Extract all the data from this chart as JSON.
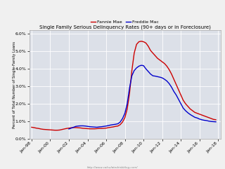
{
  "title": "Single Family Serious Delinquency Rates (90+ days or in Foreclosure)",
  "ylabel": "Percent of Total Number of Single-Family Loans",
  "url_text": "http://www.calculatedriskblog.com/",
  "legend_fannie": "Fannie Mae",
  "legend_freddie": "Freddie Mac",
  "fannie_color": "#cc0000",
  "freddie_color": "#0000cc",
  "background_color": "#dce0e8",
  "plot_bg_color": "#dce0e8",
  "fig_bg_color": "#f0f0f0",
  "grid_color": "#ffffff",
  "ylim": [
    0.0,
    0.062
  ],
  "yticks": [
    0.0,
    0.01,
    0.02,
    0.03,
    0.04,
    0.05,
    0.06
  ],
  "ytick_labels": [
    "0.0%",
    "1.0%",
    "2.0%",
    "3.0%",
    "4.0%",
    "5.0%",
    "6.0%"
  ],
  "xtick_labels": [
    "Jan-98",
    "Jan-00",
    "Jan-02",
    "Jan-04",
    "Jan-06",
    "Jan-08",
    "Jan-10",
    "Jan-12",
    "Jan-14",
    "Jan-16",
    "Jan-18"
  ],
  "xtick_positions": [
    1998,
    2000,
    2002,
    2004,
    2006,
    2008,
    2010,
    2012,
    2014,
    2016,
    2018
  ],
  "xlim": [
    1997.75,
    2018.25
  ],
  "fannie_x": [
    1998.0,
    1998.25,
    1998.5,
    1998.75,
    1999.0,
    1999.25,
    1999.5,
    1999.75,
    2000.0,
    2000.25,
    2000.5,
    2000.75,
    2001.0,
    2001.25,
    2001.5,
    2001.75,
    2002.0,
    2002.25,
    2002.5,
    2002.75,
    2003.0,
    2003.25,
    2003.5,
    2003.75,
    2004.0,
    2004.25,
    2004.5,
    2004.75,
    2005.0,
    2005.25,
    2005.5,
    2005.75,
    2006.0,
    2006.25,
    2006.5,
    2006.75,
    2007.0,
    2007.25,
    2007.5,
    2007.75,
    2008.0,
    2008.25,
    2008.5,
    2008.75,
    2009.0,
    2009.25,
    2009.5,
    2009.75,
    2010.0,
    2010.25,
    2010.5,
    2010.75,
    2011.0,
    2011.25,
    2011.5,
    2011.75,
    2012.0,
    2012.25,
    2012.5,
    2012.75,
    2013.0,
    2013.25,
    2013.5,
    2013.75,
    2014.0,
    2014.25,
    2014.5,
    2014.75,
    2015.0,
    2015.25,
    2015.5,
    2015.75,
    2016.0,
    2016.25,
    2016.5,
    2016.75,
    2017.0,
    2017.25,
    2017.5,
    2017.75
  ],
  "fannie_y": [
    0.0065,
    0.0063,
    0.006,
    0.0058,
    0.0055,
    0.0053,
    0.0052,
    0.0051,
    0.005,
    0.0049,
    0.0048,
    0.0048,
    0.0049,
    0.0052,
    0.0055,
    0.0058,
    0.006,
    0.0062,
    0.0063,
    0.0063,
    0.0062,
    0.0061,
    0.0059,
    0.0058,
    0.0057,
    0.0056,
    0.0056,
    0.0056,
    0.0057,
    0.0058,
    0.0058,
    0.0059,
    0.006,
    0.0063,
    0.0065,
    0.0067,
    0.007,
    0.0072,
    0.008,
    0.0095,
    0.012,
    0.017,
    0.026,
    0.039,
    0.049,
    0.054,
    0.0555,
    0.0558,
    0.0555,
    0.0548,
    0.053,
    0.0505,
    0.049,
    0.0475,
    0.046,
    0.045,
    0.044,
    0.043,
    0.0415,
    0.0395,
    0.037,
    0.034,
    0.031,
    0.028,
    0.025,
    0.022,
    0.02,
    0.0185,
    0.017,
    0.016,
    0.015,
    0.0145,
    0.014,
    0.0135,
    0.013,
    0.0125,
    0.012,
    0.0115,
    0.011,
    0.0108
  ],
  "freddie_x": [
    2002.0,
    2002.25,
    2002.5,
    2002.75,
    2003.0,
    2003.25,
    2003.5,
    2003.75,
    2004.0,
    2004.25,
    2004.5,
    2004.75,
    2005.0,
    2005.25,
    2005.5,
    2005.75,
    2006.0,
    2006.25,
    2006.5,
    2006.75,
    2007.0,
    2007.25,
    2007.5,
    2007.75,
    2008.0,
    2008.25,
    2008.5,
    2008.75,
    2009.0,
    2009.25,
    2009.5,
    2009.75,
    2010.0,
    2010.25,
    2010.5,
    2010.75,
    2011.0,
    2011.25,
    2011.5,
    2011.75,
    2012.0,
    2012.25,
    2012.5,
    2012.75,
    2013.0,
    2013.25,
    2013.5,
    2013.75,
    2014.0,
    2014.25,
    2014.5,
    2014.75,
    2015.0,
    2015.25,
    2015.5,
    2015.75,
    2016.0,
    2016.25,
    2016.5,
    2016.75,
    2017.0,
    2017.25,
    2017.5,
    2017.75
  ],
  "freddie_y": [
    0.0055,
    0.006,
    0.0065,
    0.007,
    0.0072,
    0.0073,
    0.0073,
    0.0072,
    0.007,
    0.0068,
    0.0067,
    0.0066,
    0.0065,
    0.0067,
    0.0068,
    0.007,
    0.0072,
    0.0075,
    0.0078,
    0.008,
    0.0082,
    0.0085,
    0.0095,
    0.0115,
    0.0145,
    0.02,
    0.029,
    0.036,
    0.039,
    0.0405,
    0.0415,
    0.042,
    0.0418,
    0.04,
    0.0385,
    0.037,
    0.036,
    0.0358,
    0.0355,
    0.0352,
    0.0348,
    0.034,
    0.033,
    0.0315,
    0.0295,
    0.027,
    0.025,
    0.0225,
    0.02,
    0.0175,
    0.016,
    0.0148,
    0.0138,
    0.013,
    0.0122,
    0.0118,
    0.0112,
    0.0108,
    0.0105,
    0.0103,
    0.01,
    0.0098,
    0.0097,
    0.0096
  ]
}
